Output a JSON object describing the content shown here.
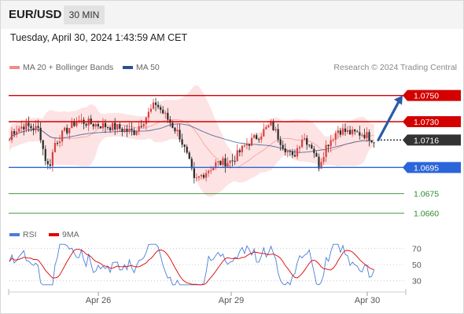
{
  "header": {
    "symbol": "EUR/USD",
    "timeframe": "30 MIN",
    "timestamp": "Tuesday, April 30, 2024 1:43:59 AM CET"
  },
  "legend": {
    "bollinger": {
      "label": "MA 20 + Bollinger Bands",
      "color": "#f28b8b"
    },
    "ma50": {
      "label": "MA 50",
      "color": "#2f4f8f"
    },
    "credit": "Research © 2024 Trading Central"
  },
  "indicator_legend": {
    "rsi": {
      "label": "RSI",
      "color": "#4a7fd6"
    },
    "ma9": {
      "label": "9MA",
      "color": "#e00000"
    }
  },
  "chart_data": [
    {
      "type": "candlestick",
      "title": "EUR/USD 30 MIN",
      "x_ticks": [
        "Apr 26",
        "Apr 29",
        "Apr 30"
      ],
      "price_levels": [
        {
          "value": "1.0750",
          "role": "resistance",
          "color": "#d40000"
        },
        {
          "value": "1.0730",
          "role": "resistance",
          "color": "#d40000"
        },
        {
          "value": "1.0716",
          "role": "last price",
          "color": "#333333"
        },
        {
          "value": "1.0695",
          "role": "pivot / support",
          "color": "#2b65d9"
        },
        {
          "value": "1.0675",
          "role": "support",
          "color": "#2d8a2d"
        },
        {
          "value": "1.0660",
          "role": "support",
          "color": "#2d8a2d"
        }
      ],
      "ylim": [
        1.0655,
        1.076
      ],
      "forecast": {
        "from": 1.0716,
        "to": 1.075,
        "direction": "up",
        "color": "#2a5aa8"
      },
      "candle_colors": {
        "up": "#d94040",
        "down": "#2a2a2a"
      },
      "series": [
        {
          "name": "MA 20",
          "kind": "bollinger",
          "color": "#f28b8b"
        },
        {
          "name": "MA 50",
          "kind": "line",
          "color": "#2f4f8f"
        }
      ]
    },
    {
      "type": "line",
      "title": "RSI",
      "y_ticks": [
        70,
        50,
        30
      ],
      "ylim": [
        20,
        80
      ],
      "series": [
        {
          "name": "RSI",
          "color": "#4a7fd6"
        },
        {
          "name": "9MA",
          "color": "#e00000"
        }
      ]
    }
  ]
}
